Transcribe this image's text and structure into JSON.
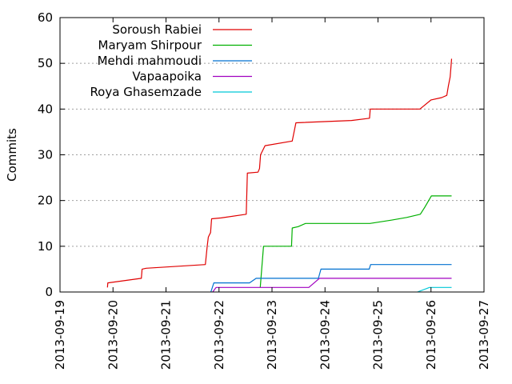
{
  "chart_data": {
    "type": "line",
    "title": "",
    "xlabel": "",
    "ylabel": "Commits",
    "ylim": [
      0,
      60
    ],
    "yticks": [
      0,
      10,
      20,
      30,
      40,
      50,
      60
    ],
    "xlim": [
      "2013-09-19",
      "2013-09-27"
    ],
    "xticks": [
      "2013-09-19",
      "2013-09-20",
      "2013-09-21",
      "2013-09-22",
      "2013-09-23",
      "2013-09-24",
      "2013-09-25",
      "2013-09-26",
      "2013-09-27"
    ],
    "grid": true,
    "legend_position": "top-left",
    "series": [
      {
        "name": "Soroush Rabiei",
        "color": "#e00000",
        "points": [
          [
            "2013-09-19T21:30",
            1
          ],
          [
            "2013-09-19T21:40",
            2
          ],
          [
            "2013-09-20T12:50",
            3
          ],
          [
            "2013-09-20T13:10",
            5
          ],
          [
            "2013-09-20T15:00",
            5.2
          ],
          [
            "2013-09-21T17:50",
            6
          ],
          [
            "2013-09-21T18:40",
            10
          ],
          [
            "2013-09-21T19:10",
            12
          ],
          [
            "2013-09-21T20:10",
            13
          ],
          [
            "2013-09-21T20:40",
            16
          ],
          [
            "2013-09-22T01:00",
            16.2
          ],
          [
            "2013-09-22T12:20",
            17
          ],
          [
            "2013-09-22T12:50",
            26
          ],
          [
            "2013-09-22T17:40",
            26.2
          ],
          [
            "2013-09-22T18:20",
            27
          ],
          [
            "2013-09-22T18:50",
            30
          ],
          [
            "2013-09-22T20:50",
            32
          ],
          [
            "2013-09-23T09:10",
            33
          ],
          [
            "2013-09-23T10:00",
            35
          ],
          [
            "2013-09-23T10:50",
            37
          ],
          [
            "2013-09-24T12:00",
            37.5
          ],
          [
            "2013-09-24T20:10",
            38
          ],
          [
            "2013-09-24T20:30",
            40
          ],
          [
            "2013-09-25T19:00",
            40
          ],
          [
            "2013-09-26T00:00",
            42
          ],
          [
            "2013-09-26T04:50",
            42.5
          ],
          [
            "2013-09-26T07:10",
            43
          ],
          [
            "2013-09-26T07:50",
            45
          ],
          [
            "2013-09-26T08:40",
            47
          ],
          [
            "2013-09-26T09:20",
            51
          ]
        ]
      },
      {
        "name": "Maryam Shirpour",
        "color": "#00b000",
        "points": [
          [
            "2013-09-22T18:40",
            1
          ],
          [
            "2013-09-22T20:10",
            10
          ],
          [
            "2013-09-23T08:50",
            10
          ],
          [
            "2013-09-23T09:10",
            14
          ],
          [
            "2013-09-23T11:50",
            14.3
          ],
          [
            "2013-09-23T15:10",
            15
          ],
          [
            "2013-09-24T20:20",
            15
          ],
          [
            "2013-09-25T06:00",
            15.7
          ],
          [
            "2013-09-25T13:00",
            16.3
          ],
          [
            "2013-09-25T19:10",
            17
          ],
          [
            "2013-09-25T21:10",
            18.5
          ],
          [
            "2013-09-26T00:10",
            21
          ],
          [
            "2013-09-26T09:20",
            21
          ]
        ]
      },
      {
        "name": "Mehdi mahmoudi",
        "color": "#0070d0",
        "points": [
          [
            "2013-09-21T20:20",
            0
          ],
          [
            "2013-09-21T21:40",
            2
          ],
          [
            "2013-09-22T13:50",
            2
          ],
          [
            "2013-09-22T16:50",
            3
          ],
          [
            "2013-09-23T21:00",
            3
          ],
          [
            "2013-09-23T22:10",
            5
          ],
          [
            "2013-09-24T20:00",
            5
          ],
          [
            "2013-09-24T20:40",
            6
          ],
          [
            "2013-09-26T09:20",
            6
          ]
        ]
      },
      {
        "name": "Vapaapoika",
        "color": "#a000c0",
        "points": [
          [
            "2013-09-21T21:10",
            0
          ],
          [
            "2013-09-21T22:40",
            1
          ],
          [
            "2013-09-23T16:40",
            1
          ],
          [
            "2013-09-23T21:30",
            3
          ],
          [
            "2013-09-26T09:20",
            3
          ]
        ]
      },
      {
        "name": "Roya Ghasemzade",
        "color": "#00c8d8",
        "points": [
          [
            "2013-09-25T17:50",
            0
          ],
          [
            "2013-09-25T23:20",
            1
          ],
          [
            "2013-09-26T09:20",
            1
          ]
        ]
      }
    ]
  }
}
